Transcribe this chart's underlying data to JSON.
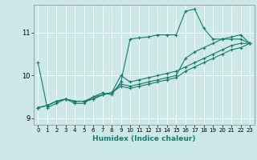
{
  "xlabel": "Humidex (Indice chaleur)",
  "bg_color": "#cce8e8",
  "line_color": "#1a7a6e",
  "grid_color": "#ffffff",
  "xlim": [
    -0.5,
    23.5
  ],
  "ylim": [
    8.85,
    11.65
  ],
  "yticks": [
    9,
    10,
    11
  ],
  "xticks": [
    0,
    1,
    2,
    3,
    4,
    5,
    6,
    7,
    8,
    9,
    10,
    11,
    12,
    13,
    14,
    15,
    16,
    17,
    18,
    19,
    20,
    21,
    22,
    23
  ],
  "series": [
    {
      "x": [
        0,
        1,
        2,
        3,
        4,
        5,
        6,
        7,
        8,
        9,
        10,
        11,
        12,
        13,
        14,
        15,
        16,
        17,
        18,
        19,
        20,
        21,
        22,
        23
      ],
      "y": [
        10.3,
        9.25,
        9.35,
        9.45,
        9.35,
        9.35,
        9.5,
        9.6,
        9.55,
        9.85,
        10.85,
        10.88,
        10.9,
        10.95,
        10.95,
        10.95,
        11.5,
        11.55,
        11.1,
        10.85,
        10.85,
        10.85,
        10.85,
        10.75
      ]
    },
    {
      "x": [
        0,
        1,
        2,
        3,
        4,
        5,
        6,
        7,
        8,
        9,
        10,
        11,
        12,
        13,
        14,
        15,
        16,
        17,
        18,
        19,
        20,
        21,
        22,
        23
      ],
      "y": [
        9.25,
        9.3,
        9.4,
        9.45,
        9.4,
        9.4,
        9.45,
        9.55,
        9.6,
        10.0,
        9.85,
        9.9,
        9.95,
        10.0,
        10.05,
        10.1,
        10.2,
        10.3,
        10.4,
        10.5,
        10.6,
        10.7,
        10.75,
        10.75
      ]
    },
    {
      "x": [
        0,
        1,
        2,
        3,
        4,
        5,
        6,
        7,
        8,
        9,
        10,
        11,
        12,
        13,
        14,
        15,
        16,
        17,
        18,
        19,
        20,
        21,
        22,
        23
      ],
      "y": [
        9.25,
        9.3,
        9.4,
        9.45,
        9.4,
        9.4,
        9.45,
        9.55,
        9.6,
        9.8,
        9.75,
        9.8,
        9.85,
        9.9,
        9.95,
        10.0,
        10.4,
        10.55,
        10.65,
        10.75,
        10.85,
        10.9,
        10.95,
        10.75
      ]
    },
    {
      "x": [
        0,
        1,
        2,
        3,
        4,
        5,
        6,
        7,
        8,
        9,
        10,
        11,
        12,
        13,
        14,
        15,
        16,
        17,
        18,
        19,
        20,
        21,
        22,
        23
      ],
      "y": [
        9.25,
        9.3,
        9.4,
        9.45,
        9.4,
        9.4,
        9.5,
        9.55,
        9.6,
        9.75,
        9.7,
        9.75,
        9.8,
        9.85,
        9.9,
        9.95,
        10.1,
        10.2,
        10.3,
        10.4,
        10.5,
        10.6,
        10.65,
        10.75
      ]
    }
  ]
}
